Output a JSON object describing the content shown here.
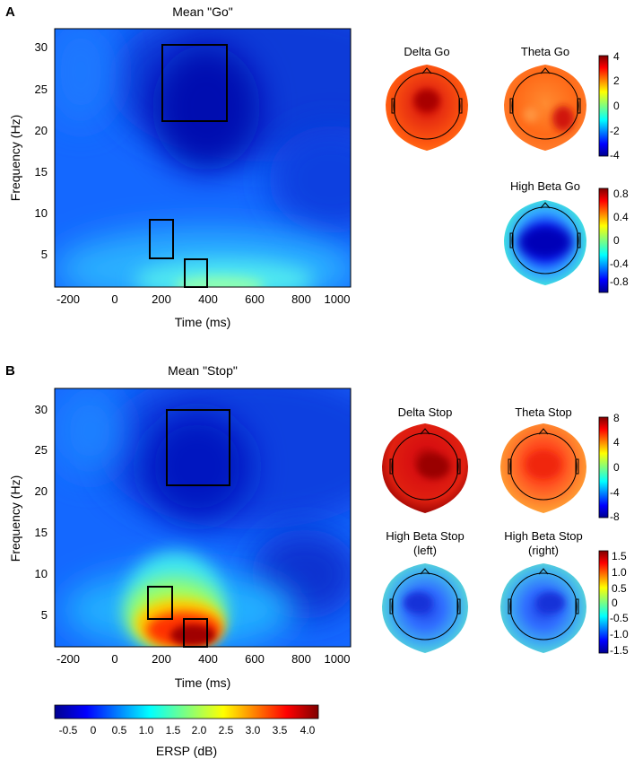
{
  "panels": {
    "A": {
      "letter": "A",
      "title": "Mean \"Go\"",
      "ylabel": "Frequency (Hz)",
      "xlabel": "Time (ms)",
      "topos": [
        "Delta Go",
        "Theta Go",
        "High Beta Go"
      ],
      "cb1_ticks": [
        "4",
        "2",
        "0",
        "-2",
        "-4"
      ],
      "cb2_ticks": [
        "0.8",
        "0.4",
        "0",
        "-0.4",
        "-0.8"
      ]
    },
    "B": {
      "letter": "B",
      "title": "Mean \"Stop\"",
      "ylabel": "Frequency (Hz)",
      "xlabel": "Time (ms)",
      "topos": [
        "Delta Stop",
        "Theta Stop",
        "High Beta Stop",
        "(left)",
        "High Beta Stop",
        "(right)"
      ],
      "cb1_ticks": [
        "8",
        "4",
        "0",
        "-4",
        "-8"
      ],
      "cb2_ticks": [
        "1.5",
        "1.0",
        "0.5",
        "0",
        "-0.5",
        "-1.0",
        "-1.5"
      ]
    }
  },
  "bottom_colorbar": {
    "label": "ERSP (dB)",
    "ticks": [
      "-0.5",
      "0",
      "0.5",
      "1.0",
      "1.5",
      "2.0",
      "2.5",
      "3.0",
      "3.5",
      "4.0"
    ]
  },
  "chart_data": [
    {
      "type": "heatmap",
      "title": "Mean \"Go\"",
      "xlabel": "Time (ms)",
      "ylabel": "Frequency (Hz)",
      "x_ticks": [
        -200,
        0,
        200,
        400,
        600,
        800,
        1000
      ],
      "y_ticks": [
        5,
        10,
        15,
        20,
        25,
        30
      ],
      "xlim": [
        -250,
        1000
      ],
      "ylim": [
        1,
        33
      ],
      "color_scale": "ERSP (dB)",
      "boxes": [
        {
          "band": "high beta",
          "t": [
            200,
            480
          ],
          "f": [
            21,
            30
          ]
        },
        {
          "band": "theta",
          "t": [
            150,
            250
          ],
          "f": [
            4,
            9
          ]
        },
        {
          "band": "delta",
          "t": [
            300,
            400
          ],
          "f": [
            1,
            4
          ]
        }
      ]
    },
    {
      "type": "heatmap",
      "title": "Mean \"Stop\"",
      "xlabel": "Time (ms)",
      "ylabel": "Frequency (Hz)",
      "x_ticks": [
        -200,
        0,
        200,
        400,
        600,
        800,
        1000
      ],
      "y_ticks": [
        5,
        10,
        15,
        20,
        25,
        30
      ],
      "xlim": [
        -250,
        1000
      ],
      "ylim": [
        1,
        33
      ],
      "color_scale": "ERSP (dB)",
      "boxes": [
        {
          "band": "high beta",
          "t": [
            230,
            490
          ],
          "f": [
            21,
            30
          ]
        },
        {
          "band": "theta",
          "t": [
            150,
            250
          ],
          "f": [
            4.5,
            8.5
          ]
        },
        {
          "band": "delta",
          "t": [
            300,
            400
          ],
          "f": [
            1,
            4.5
          ]
        }
      ]
    }
  ]
}
